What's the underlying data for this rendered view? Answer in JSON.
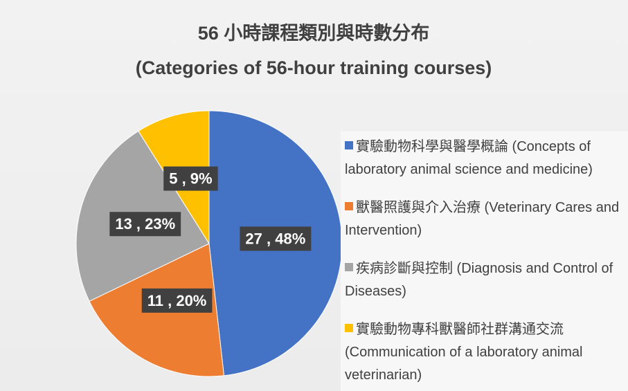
{
  "chart_data": {
    "type": "pie",
    "title": [
      "56 小時課程類別與時數分布",
      "(Categories of 56-hour training courses)"
    ],
    "categories": [
      "實驗動物科學與醫學概論 (Concepts of laboratory animal science and medicine)",
      "獸醫照護與介入治療 (Veterinary Cares and Intervention)",
      "疾病診斷與控制 (Diagnosis and Control of Diseases)",
      "實驗動物專科獸醫師社群溝通交流 (Communication of a laboratory animal veterinarian)"
    ],
    "values": [
      27,
      11,
      13,
      5
    ],
    "value_labels": [
      "27 , 48%",
      "11 , 20%",
      "13 , 23%",
      "5 , 9%"
    ],
    "colors": [
      "#4472c4",
      "#ed7d31",
      "#a5a5a5",
      "#ffc000"
    ],
    "legend": "right"
  }
}
